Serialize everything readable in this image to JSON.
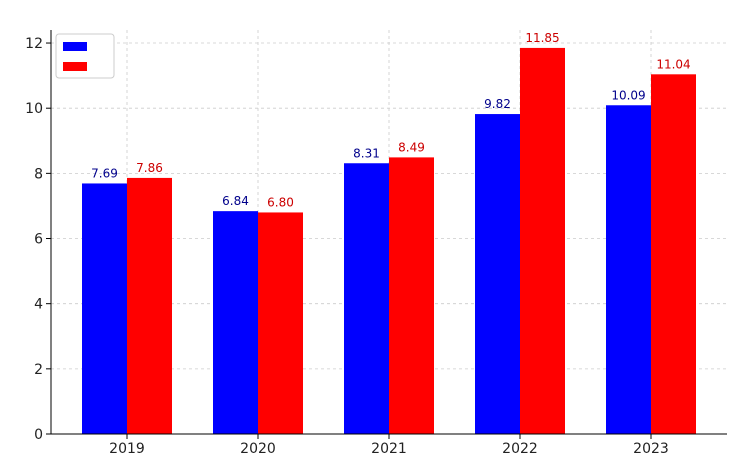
{
  "chart_data": {
    "type": "bar",
    "categories": [
      "2019",
      "2020",
      "2021",
      "2022",
      "2023"
    ],
    "series": [
      {
        "values": [
          7.69,
          6.84,
          8.31,
          9.82,
          10.09
        ],
        "color": "#0000ff",
        "label_color": "#00008b"
      },
      {
        "values": [
          7.86,
          6.8,
          8.49,
          11.85,
          11.04
        ],
        "color": "#ff0000",
        "label_color": "#cc0000"
      }
    ],
    "data_labels": [
      [
        "7.69",
        "6.84",
        "8.31",
        "9.82",
        "10.09"
      ],
      [
        "7.86",
        "6.80",
        "8.49",
        "11.85",
        "11.04"
      ]
    ],
    "ylim": [
      0,
      12.4
    ],
    "yticks": [
      "0",
      "2",
      "4",
      "6",
      "8",
      "10",
      "12"
    ],
    "grid": true,
    "legend_position": "top-left"
  }
}
